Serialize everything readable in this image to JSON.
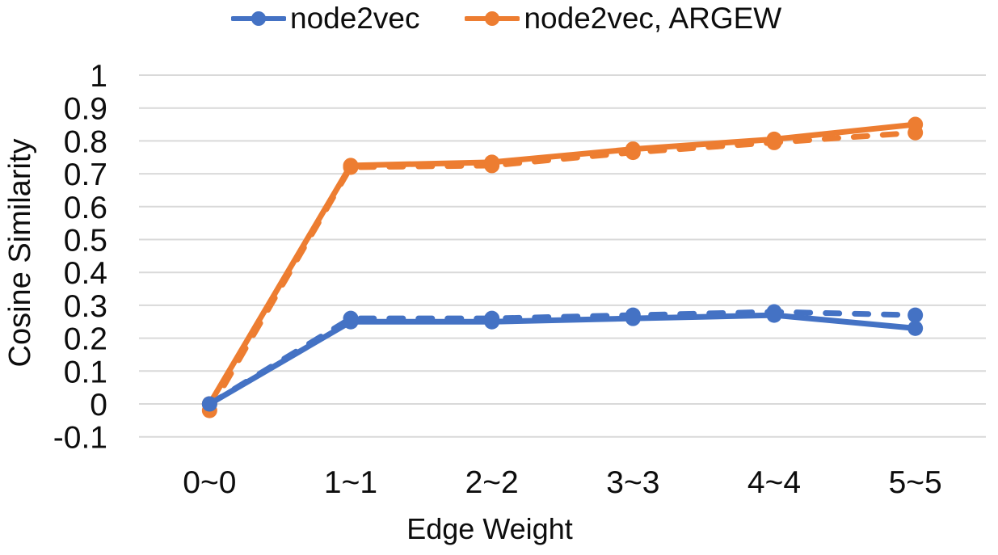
{
  "chart_data": {
    "type": "line",
    "title": "",
    "xlabel": "Edge Weight",
    "ylabel": "Cosine Similarity",
    "categories": [
      "0~0",
      "1~1",
      "2~2",
      "3~3",
      "4~4",
      "5~5"
    ],
    "ylim": [
      -0.1,
      1
    ],
    "ytick_step": 0.1,
    "ytick_labels": [
      "1",
      "0.9",
      "0.8",
      "0.7",
      "0.6",
      "0.5",
      "0.4",
      "0.3",
      "0.2",
      "0.1",
      "0",
      "-0.1"
    ],
    "grid": "horizontal",
    "legend_position": "top-center",
    "legend": [
      {
        "label": "node2vec",
        "color": "#4472C4"
      },
      {
        "label": "node2vec, ARGEW",
        "color": "#ED7D31"
      }
    ],
    "series": [
      {
        "name": "node2vec, ARGEW (dashed)",
        "color": "#ED7D31",
        "style": "dashed",
        "values": [
          -0.02,
          0.72,
          0.725,
          0.765,
          0.795,
          0.825
        ]
      },
      {
        "name": "node2vec (dashed)",
        "color": "#4472C4",
        "style": "dashed",
        "values": [
          0,
          0.26,
          0.26,
          0.27,
          0.28,
          0.27
        ]
      },
      {
        "name": "node2vec, ARGEW",
        "color": "#ED7D31",
        "style": "solid",
        "values": [
          0,
          0.725,
          0.735,
          0.775,
          0.805,
          0.85
        ]
      },
      {
        "name": "node2vec",
        "color": "#4472C4",
        "style": "solid",
        "values": [
          0,
          0.25,
          0.25,
          0.26,
          0.27,
          0.23
        ]
      }
    ],
    "colors": {
      "grid": "#D9D9D9",
      "text": "#0d0d0d",
      "background": "#FFFFFF"
    }
  }
}
